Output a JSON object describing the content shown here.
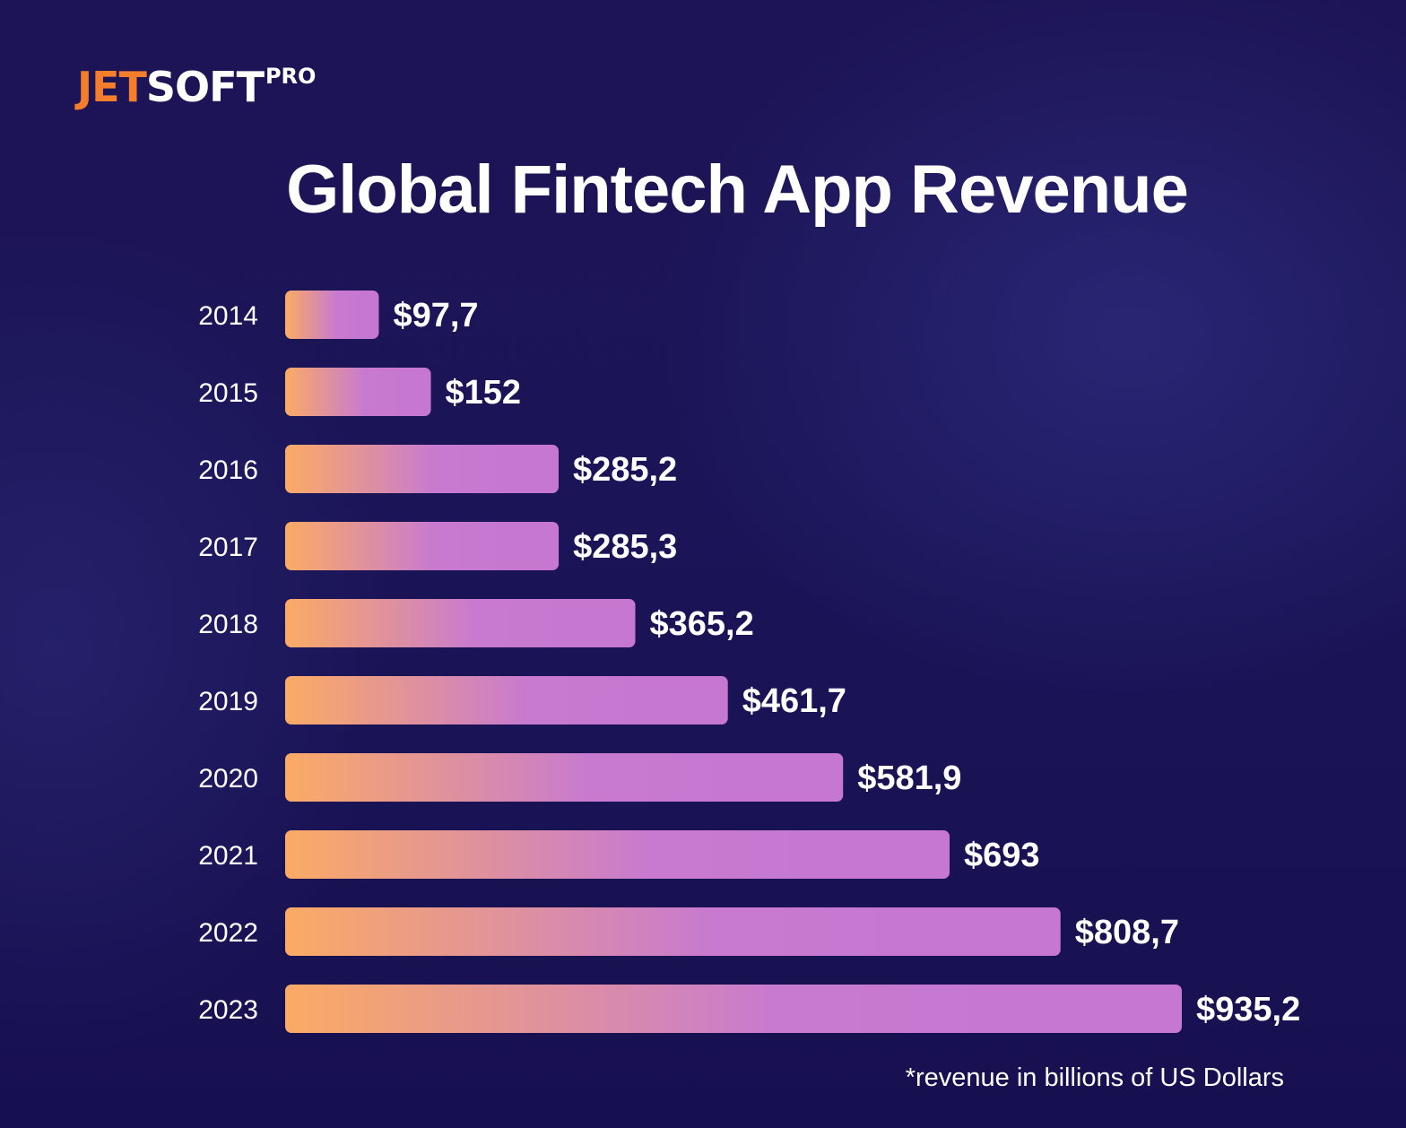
{
  "brand": {
    "part1": "JET",
    "part2": "SOFT",
    "superscript": "PRO"
  },
  "colors": {
    "background": "#1b1558",
    "brand_orange": "#f47e2c",
    "bar_start": "#fbab64",
    "bar_mid": "#c77ad0",
    "bar_end": "#c677d0",
    "text": "#ffffff"
  },
  "chart_data": {
    "type": "bar",
    "orientation": "horizontal",
    "title": "Global Fintech App Revenue",
    "categories": [
      "2014",
      "2015",
      "2016",
      "2017",
      "2018",
      "2019",
      "2020",
      "2021",
      "2022",
      "2023"
    ],
    "values": [
      97.7,
      152,
      285.2,
      285.3,
      365.2,
      461.7,
      581.9,
      693,
      808.7,
      935.2
    ],
    "value_labels": [
      "$97,7",
      "$152",
      "$285,2",
      "$285,3",
      "$365,2",
      "$461,7",
      "$581,9",
      "$693",
      "$808,7",
      "$935,2"
    ],
    "xlabel": "",
    "ylabel": "",
    "footnote": "*revenue in billions of US Dollars",
    "grid": false,
    "legend": "none"
  }
}
